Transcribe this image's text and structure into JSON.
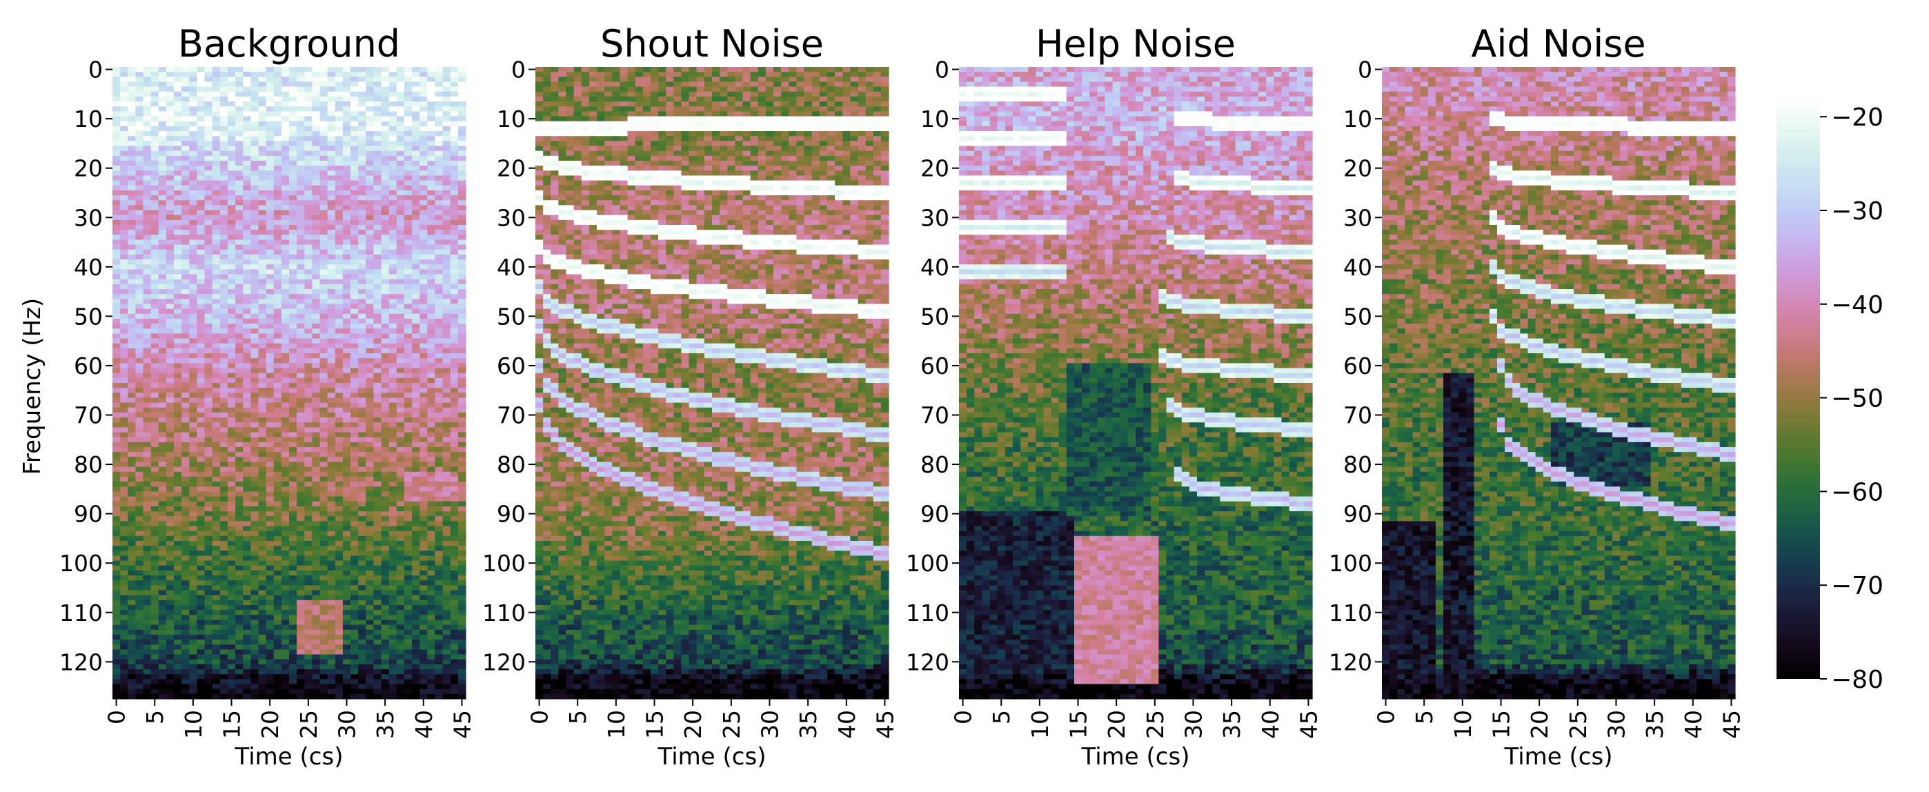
{
  "chart_data": {
    "type": "heatmap",
    "ylabel": "Frequency (Hz)",
    "colormap": "cubehelix",
    "colorbar": {
      "range": [
        -80,
        -18
      ],
      "ticks": [
        "−20",
        "−30",
        "−40",
        "−50",
        "−60",
        "−70",
        "−80"
      ],
      "tick_values": [
        -20,
        -30,
        -40,
        -50,
        -60,
        -70,
        -80
      ]
    },
    "x_ticks": [
      "0",
      "5",
      "10",
      "15",
      "20",
      "25",
      "30",
      "35",
      "40",
      "45"
    ],
    "x_tick_values": [
      0,
      5,
      10,
      15,
      20,
      25,
      30,
      35,
      40,
      45
    ],
    "y_ticks": [
      "0",
      "10",
      "20",
      "30",
      "40",
      "50",
      "60",
      "70",
      "80",
      "90",
      "100",
      "110",
      "120"
    ],
    "y_tick_values": [
      0,
      10,
      20,
      30,
      40,
      50,
      60,
      70,
      80,
      90,
      100,
      110,
      120
    ],
    "n_time_bins": 46,
    "n_freq_bins": 128,
    "panels": [
      {
        "title": "Background",
        "xlabel": "Time (cs)",
        "description_profile": "freq_profile_db",
        "freq_profile_db": [
          [
            0,
            -24
          ],
          [
            10,
            -22
          ],
          [
            20,
            -30
          ],
          [
            30,
            -38
          ],
          [
            40,
            -28
          ],
          [
            50,
            -33
          ],
          [
            60,
            -40
          ],
          [
            70,
            -44
          ],
          [
            80,
            -48
          ],
          [
            90,
            -52
          ],
          [
            100,
            -58
          ],
          [
            110,
            -62
          ],
          [
            120,
            -66
          ],
          [
            124,
            -76
          ],
          [
            127,
            -80
          ]
        ],
        "band_lines": [],
        "dark_regions": [],
        "bright_regions": [
          {
            "t": [
              24,
              29
            ],
            "f": [
              108,
              118
            ],
            "db": -46
          },
          {
            "t": [
              38,
              44
            ],
            "f": [
              82,
              87
            ],
            "db": -42
          }
        ]
      },
      {
        "title": "Shout Noise",
        "xlabel": "Time (cs)",
        "freq_profile_db": [
          [
            0,
            -50
          ],
          [
            10,
            -52
          ],
          [
            20,
            -48
          ],
          [
            30,
            -46
          ],
          [
            40,
            -46
          ],
          [
            50,
            -46
          ],
          [
            60,
            -50
          ],
          [
            70,
            -50
          ],
          [
            80,
            -48
          ],
          [
            90,
            -50
          ],
          [
            100,
            -56
          ],
          [
            110,
            -62
          ],
          [
            120,
            -66
          ],
          [
            124,
            -78
          ],
          [
            127,
            -80
          ]
        ],
        "band_lines": [
          {
            "start_f": 12,
            "end_f": 11,
            "db": -18
          },
          {
            "start_f": 18,
            "end_f": 25,
            "db": -20
          },
          {
            "start_f": 26,
            "end_f": 37,
            "db": -20
          },
          {
            "start_f": 36,
            "end_f": 49,
            "db": -20
          },
          {
            "start_f": 44,
            "end_f": 62,
            "db": -30
          },
          {
            "start_f": 52,
            "end_f": 74,
            "db": -32
          },
          {
            "start_f": 60,
            "end_f": 86,
            "db": -34
          },
          {
            "start_f": 68,
            "end_f": 98,
            "db": -36
          }
        ],
        "dark_regions": [],
        "bright_regions": []
      },
      {
        "title": "Help Noise",
        "xlabel": "Time (cs)",
        "freq_profile_db": [
          [
            0,
            -36
          ],
          [
            10,
            -34
          ],
          [
            20,
            -38
          ],
          [
            30,
            -40
          ],
          [
            40,
            -44
          ],
          [
            50,
            -48
          ],
          [
            60,
            -52
          ],
          [
            70,
            -56
          ],
          [
            80,
            -58
          ],
          [
            90,
            -60
          ],
          [
            100,
            -62
          ],
          [
            110,
            -62
          ],
          [
            120,
            -66
          ],
          [
            124,
            -78
          ],
          [
            127,
            -80
          ]
        ],
        "band_lines": [
          {
            "t": [
              0,
              13
            ],
            "start_f": 5,
            "end_f": 5,
            "db": -20
          },
          {
            "t": [
              0,
              13
            ],
            "start_f": 14,
            "end_f": 14,
            "db": -20
          },
          {
            "t": [
              0,
              13
            ],
            "start_f": 23,
            "end_f": 23,
            "db": -22
          },
          {
            "t": [
              0,
              13
            ],
            "start_f": 32,
            "end_f": 32,
            "db": -24
          },
          {
            "t": [
              0,
              13
            ],
            "start_f": 41,
            "end_f": 41,
            "db": -28
          },
          {
            "t": [
              28,
              45
            ],
            "start_f": 10,
            "end_f": 11,
            "db": -18
          },
          {
            "t": [
              28,
              45
            ],
            "start_f": 22,
            "end_f": 24,
            "db": -24
          },
          {
            "t": [
              27,
              45
            ],
            "start_f": 34,
            "end_f": 37,
            "db": -26
          },
          {
            "t": [
              26,
              45
            ],
            "start_f": 46,
            "end_f": 50,
            "db": -28
          },
          {
            "t": [
              26,
              45
            ],
            "start_f": 58,
            "end_f": 62,
            "db": -28
          },
          {
            "t": [
              27,
              45
            ],
            "start_f": 68,
            "end_f": 73,
            "db": -30
          },
          {
            "t": [
              28,
              45
            ],
            "start_f": 82,
            "end_f": 88,
            "db": -32
          }
        ],
        "dark_regions": [
          {
            "t": [
              0,
              14
            ],
            "f": [
              90,
              122
            ],
            "db": -72
          },
          {
            "t": [
              14,
              24
            ],
            "f": [
              60,
              90
            ],
            "db": -64
          }
        ],
        "bright_regions": [
          {
            "t": [
              15,
              25
            ],
            "f": [
              95,
              124
            ],
            "db": -42
          }
        ]
      },
      {
        "title": "Aid Noise",
        "xlabel": "Time (cs)",
        "freq_profile_db": [
          [
            0,
            -40
          ],
          [
            10,
            -42
          ],
          [
            20,
            -46
          ],
          [
            30,
            -48
          ],
          [
            40,
            -50
          ],
          [
            50,
            -52
          ],
          [
            60,
            -54
          ],
          [
            70,
            -56
          ],
          [
            80,
            -58
          ],
          [
            90,
            -58
          ],
          [
            100,
            -60
          ],
          [
            110,
            -62
          ],
          [
            120,
            -64
          ],
          [
            124,
            -78
          ],
          [
            127,
            -80
          ]
        ],
        "band_lines": [
          {
            "t": [
              14,
              45
            ],
            "start_f": 10,
            "end_f": 12,
            "db": -18
          },
          {
            "t": [
              14,
              45
            ],
            "start_f": 20,
            "end_f": 25,
            "db": -22
          },
          {
            "t": [
              14,
              45
            ],
            "start_f": 30,
            "end_f": 40,
            "db": -22
          },
          {
            "t": [
              14,
              45
            ],
            "start_f": 40,
            "end_f": 51,
            "db": -28
          },
          {
            "t": [
              14,
              45
            ],
            "start_f": 50,
            "end_f": 64,
            "db": -30
          },
          {
            "t": [
              15,
              45
            ],
            "start_f": 60,
            "end_f": 78,
            "db": -34
          },
          {
            "t": [
              15,
              45
            ],
            "start_f": 72,
            "end_f": 92,
            "db": -36
          }
        ],
        "dark_regions": [
          {
            "t": [
              0,
              6
            ],
            "f": [
              92,
              124
            ],
            "db": -74
          },
          {
            "t": [
              8,
              11
            ],
            "f": [
              62,
              124
            ],
            "db": -74
          },
          {
            "t": [
              22,
              34
            ],
            "f": [
              72,
              84
            ],
            "db": -68
          }
        ],
        "bright_regions": []
      }
    ]
  }
}
